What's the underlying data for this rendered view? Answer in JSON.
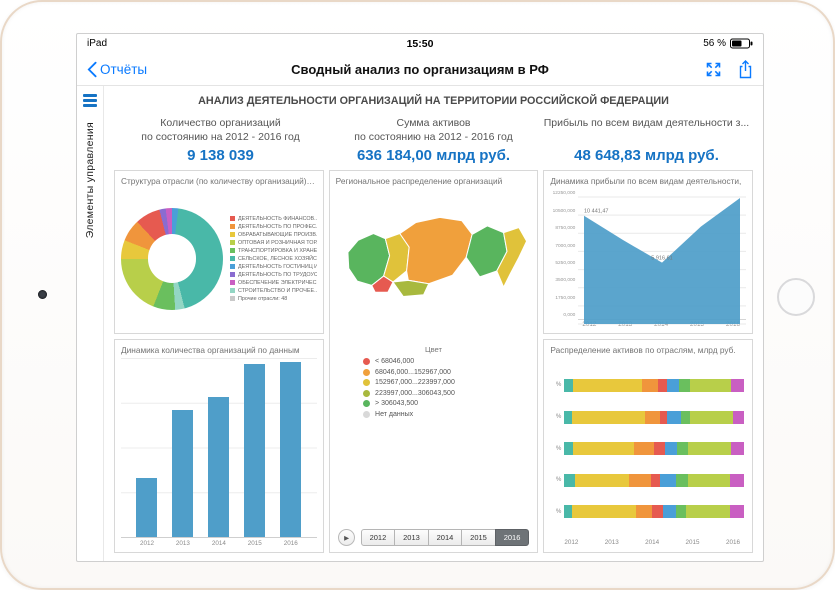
{
  "device": {
    "status_left": "iPad",
    "time": "15:50",
    "battery_label": "56 %",
    "battery_level": 56
  },
  "nav": {
    "back_label": "Отчёты",
    "title": "Сводный анализ по организациям в РФ"
  },
  "sidebar": {
    "label": "Элементы управления"
  },
  "report": {
    "title": "АНАЛИЗ ДЕЯТЕЛЬНОСТИ ОРГАНИЗАЦИЙ НА ТЕРРИТОРИИ РОССИЙСКОЙ ФЕДЕРАЦИИ"
  },
  "kpis": [
    {
      "label": "Количество организаций",
      "sublabel": "по состоянию на 2012 - 2016 год",
      "value": "9 138 039"
    },
    {
      "label": "Сумма активов",
      "sublabel": "по состоянию на 2012 - 2016 год",
      "value": "636 184,00 млрд руб."
    },
    {
      "label": "Прибыль по всем видам деятельности з...",
      "sublabel": "",
      "value": "48 648,83 млрд руб."
    }
  ],
  "colors": {
    "ios_blue": "#0a7aff",
    "kpi_blue": "#1673c4",
    "chart_blue": "#4f9ec9"
  },
  "panels": {
    "donut": {
      "title": "Структура отрасли (по количеству организаций), %"
    },
    "map": {
      "title": "Региональное распределение организаций",
      "legend_title": "Цвет",
      "legend": [
        {
          "label": "< 68046,000",
          "color": "#e65a50"
        },
        {
          "label": "68046,000...152967,000",
          "color": "#f0a03c"
        },
        {
          "label": "152967,000...223997,000",
          "color": "#e0c23a"
        },
        {
          "label": "223997,000...306043,500",
          "color": "#a8b93e"
        },
        {
          "label": "> 306043,500",
          "color": "#59b55e"
        },
        {
          "label": "Нет данных",
          "color": "#d9d9d9"
        }
      ],
      "years": [
        "2012",
        "2013",
        "2014",
        "2015",
        "2016"
      ],
      "selected_year": "2016"
    },
    "area": {
      "title": "Динамика прибыли по всем видам деятельности,"
    },
    "bars": {
      "title": "Динамика количества организаций по данным"
    },
    "stacked": {
      "title": "Распределение активов по отраслям, млрд руб."
    }
  },
  "chart_data": [
    {
      "type": "pie",
      "title": "Структура отрасли (по количеству организаций), %",
      "slices": [
        {
          "color": "#4a9fd8",
          "value": 2
        },
        {
          "color": "#49b8a8",
          "value": 44
        },
        {
          "color": "#93d6c4",
          "value": 3
        },
        {
          "color": "#6abf5e",
          "value": 7
        },
        {
          "color": "#b8cf4a",
          "value": 19
        },
        {
          "color": "#e8c83c",
          "value": 6
        },
        {
          "color": "#f0953c",
          "value": 7
        },
        {
          "color": "#e65a50",
          "value": 8
        },
        {
          "color": "#8a6cd0",
          "value": 2
        },
        {
          "color": "#c95fc2",
          "value": 2
        }
      ],
      "legend": [
        {
          "label": "ДЕЯТЕЛЬНОСТЬ ФИНАНСОВ...",
          "color": "#e65a50"
        },
        {
          "label": "ДЕЯТЕЛЬНОСТЬ ПО ПРОФЕС...",
          "color": "#f0953c"
        },
        {
          "label": "ОБРАБАТЫВАЮЩИЕ ПРОИЗВ...",
          "color": "#e8c83c"
        },
        {
          "label": "ОПТОВАЯ И РОЗНИЧНАЯ ТОР...",
          "color": "#b8cf4a"
        },
        {
          "label": "ТРАНСПОРТИРОВКА И ХРАНЕ...",
          "color": "#6abf5e"
        },
        {
          "label": "СЕЛЬСКОЕ, ЛЕСНОЕ ХОЗЯЙС...",
          "color": "#49b8a8"
        },
        {
          "label": "ДЕЯТЕЛЬНОСТЬ ГОСТИНИЦ И...",
          "color": "#4a9fd8"
        },
        {
          "label": "ДЕЯТЕЛЬНОСТЬ ПО ТРУДОУС...",
          "color": "#8a6cd0"
        },
        {
          "label": "ОБЕСПЕЧЕНИЕ ЭЛЕКТРИЧЕС...",
          "color": "#c95fc2"
        },
        {
          "label": "СТРОИТЕЛЬСТВО И ПРОЧЕЕ...",
          "color": "#93d6c4"
        },
        {
          "label": "Прочие отрасли: 48",
          "color": "#c9c9c9"
        }
      ]
    },
    {
      "type": "area",
      "title": "Динамика прибыли по всем видам деятельности",
      "x": [
        "2012",
        "2013",
        "2014",
        "2015",
        "2016"
      ],
      "values": [
        10441.47,
        8100,
        5916.61,
        9400,
        12150
      ],
      "point_labels": [
        "10 441,47",
        "",
        "5 916,61",
        "",
        ""
      ],
      "ylim": [
        0,
        12250
      ],
      "yticks": [
        "12250,000",
        "10500,000",
        "8750,000",
        "7000,000",
        "5250,000",
        "3500,000",
        "1750,000",
        "0,000"
      ],
      "color": "#4f9ec9"
    },
    {
      "type": "bar",
      "title": "Динамика количества организаций",
      "categories": [
        "2012",
        "2013",
        "2014",
        "2015",
        "2016"
      ],
      "values": [
        620000,
        1330000,
        1470000,
        1810000,
        1830000
      ],
      "color": "#4f9ec9"
    },
    {
      "type": "stacked-bar-horizontal",
      "title": "Распределение активов по отраслям, млрд руб.",
      "row_label": "%",
      "rows": [
        "2012",
        "2013",
        "2014",
        "2015",
        "2016"
      ],
      "x_ticks": [
        "2012",
        "2013",
        "2014",
        "2015",
        "2016"
      ],
      "series": [
        {
          "color": "#49b8a8",
          "values": [
            5,
            4,
            5,
            6,
            4
          ]
        },
        {
          "color": "#e8c83c",
          "values": [
            38,
            41,
            34,
            30,
            36
          ]
        },
        {
          "color": "#f0953c",
          "values": [
            9,
            8,
            11,
            12,
            9
          ]
        },
        {
          "color": "#e65a50",
          "values": [
            5,
            4,
            6,
            5,
            6
          ]
        },
        {
          "color": "#4a9fd8",
          "values": [
            7,
            8,
            7,
            9,
            7
          ]
        },
        {
          "color": "#6abf5e",
          "values": [
            6,
            5,
            6,
            7,
            6
          ]
        },
        {
          "color": "#b8cf4a",
          "values": [
            23,
            24,
            24,
            23,
            24
          ]
        },
        {
          "color": "#c95fc2",
          "values": [
            7,
            6,
            7,
            8,
            8
          ]
        }
      ]
    }
  ]
}
